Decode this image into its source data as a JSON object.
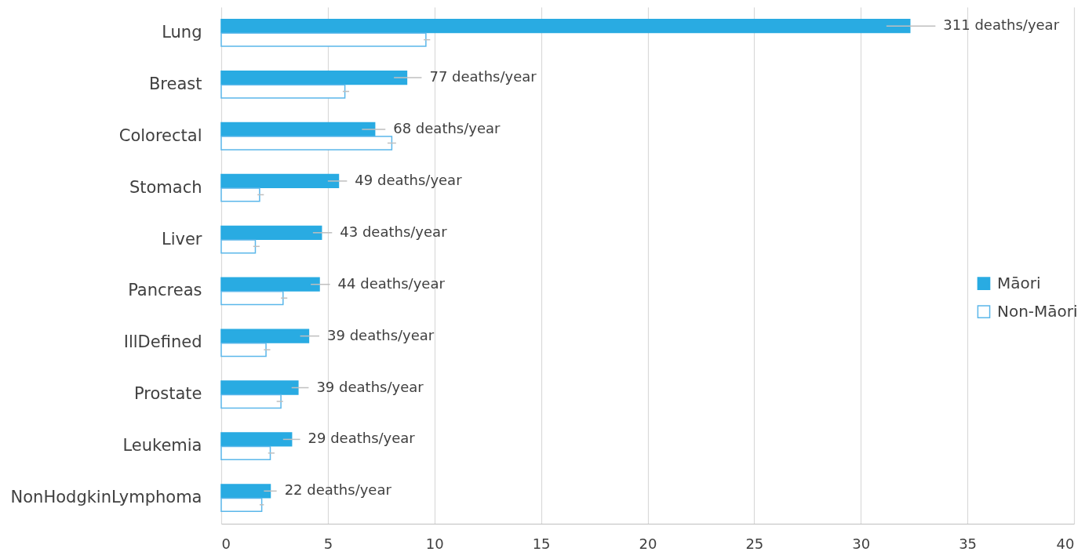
{
  "chart_data": {
    "type": "bar",
    "orientation": "horizontal",
    "categories": [
      "Lung",
      "Breast",
      "Colorectal",
      "Stomach",
      "Liver",
      "Pancreas",
      "IllDefined",
      "Prostate",
      "Leukemia",
      "NonHodgkinLymphoma"
    ],
    "series": [
      {
        "name": "Māori",
        "color": "#29abe2",
        "values": [
          32.3,
          8.7,
          7.2,
          5.5,
          4.7,
          4.6,
          4.1,
          3.6,
          3.3,
          2.3
        ],
        "errors": [
          [
            31.2,
            33.5
          ],
          [
            8.1,
            9.4
          ],
          [
            6.6,
            7.7
          ],
          [
            5.0,
            5.9
          ],
          [
            4.3,
            5.2
          ],
          [
            4.2,
            5.1
          ],
          [
            3.7,
            4.6
          ],
          [
            3.3,
            4.1
          ],
          [
            2.9,
            3.7
          ],
          [
            2.0,
            2.6
          ]
        ]
      },
      {
        "name": "Non-Māori",
        "color": "#5bb7ea",
        "values": [
          9.6,
          5.8,
          8.0,
          1.8,
          1.6,
          2.9,
          2.1,
          2.8,
          2.3,
          1.9
        ],
        "errors": [
          [
            9.5,
            9.8
          ],
          [
            5.7,
            6.0
          ],
          [
            7.8,
            8.2
          ],
          [
            1.7,
            2.0
          ],
          [
            1.5,
            1.8
          ],
          [
            2.8,
            3.1
          ],
          [
            2.0,
            2.3
          ],
          [
            2.6,
            2.9
          ],
          [
            2.2,
            2.5
          ],
          [
            1.8,
            2.0
          ]
        ]
      }
    ],
    "annotations": [
      {
        "text": "311 deaths/year",
        "x": 32.3,
        "y": "Lung"
      },
      {
        "text": "77 deaths/year",
        "x": 8.7,
        "y": "Breast"
      },
      {
        "text": "68 deaths/year",
        "x": 7.2,
        "y": "Colorectal"
      },
      {
        "text": "49 deaths/year",
        "x": 5.5,
        "y": "Stomach"
      },
      {
        "text": "43 deaths/year",
        "x": 4.7,
        "y": "Liver"
      },
      {
        "text": "44 deaths/year",
        "x": 4.6,
        "y": "Pancreas"
      },
      {
        "text": "39 deaths/year",
        "x": 4.1,
        "y": "IllDefined"
      },
      {
        "text": "39 deaths/year",
        "x": 3.6,
        "y": "Prostate"
      },
      {
        "text": "29 deaths/year",
        "x": 3.3,
        "y": "Leukemia"
      },
      {
        "text": "22 deaths/year",
        "x": 2.3,
        "y": "NonHodgkinLymphoma"
      }
    ],
    "xlim": [
      0,
      40
    ],
    "xticks": [
      0,
      5,
      10,
      15,
      20,
      25,
      30,
      35,
      40
    ],
    "grid": "x",
    "legend": "right"
  }
}
